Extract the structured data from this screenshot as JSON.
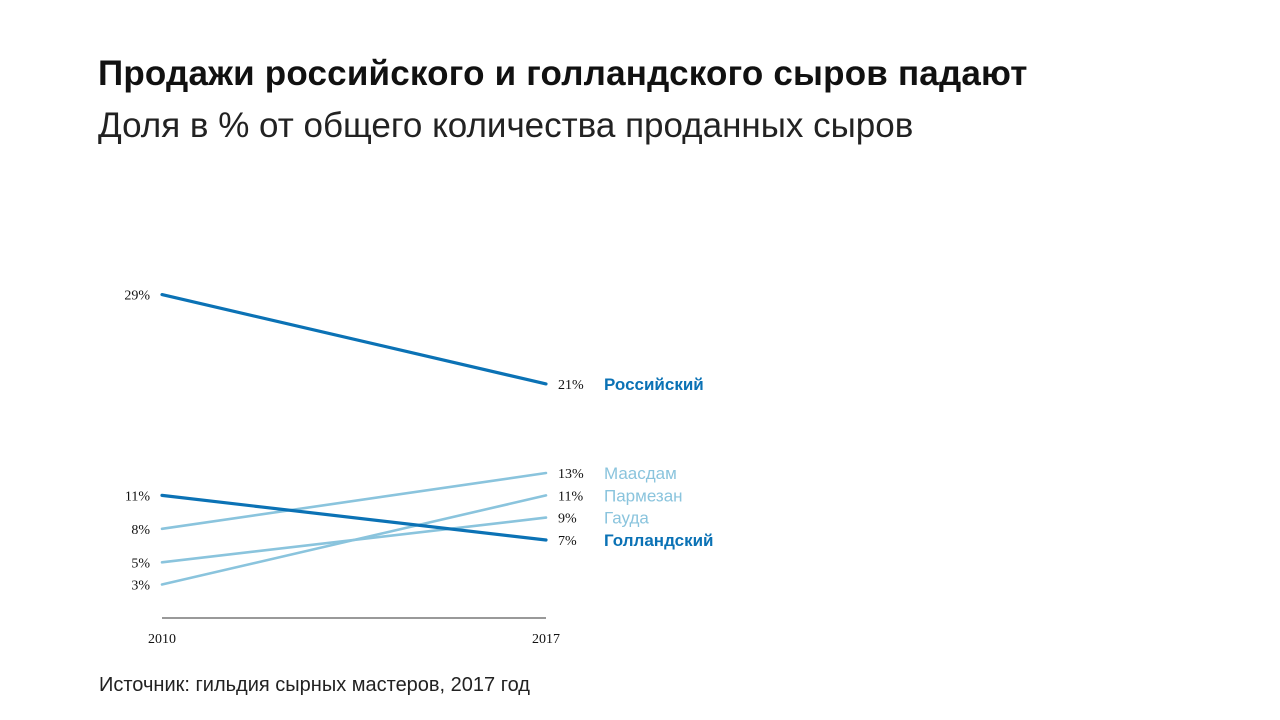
{
  "title": "Продажи российского и голландского сыров падают",
  "subtitle": "Доля в % от общего количества проданных сыров",
  "source": "Источник: гильдия сырных мастеров, 2017 год",
  "colors": {
    "dark": "#0b72b5",
    "light": "#8ac4dd",
    "axis": "#333333"
  },
  "chart_data": {
    "type": "line",
    "title": "Продажи российского и голландского сыров падают",
    "subtitle": "Доля в % от общего количества проданных сыров",
    "x": [
      "2010",
      "2017"
    ],
    "ylim": [
      0,
      35
    ],
    "grid": false,
    "legend": "inline-right",
    "series": [
      {
        "name": "Российский",
        "values": [
          29,
          21
        ],
        "labels": [
          "29%",
          "21%"
        ],
        "emphasis": true,
        "color": "#0b72b5"
      },
      {
        "name": "Маасдам",
        "values": [
          8,
          13
        ],
        "labels": [
          "8%",
          "13%"
        ],
        "emphasis": false,
        "color": "#8ac4dd"
      },
      {
        "name": "Пармезан",
        "values": [
          3,
          11
        ],
        "labels": [
          "3%",
          "11%"
        ],
        "emphasis": false,
        "color": "#8ac4dd"
      },
      {
        "name": "Гауда",
        "values": [
          5,
          9
        ],
        "labels": [
          "5%",
          "9%"
        ],
        "emphasis": false,
        "color": "#8ac4dd"
      },
      {
        "name": "Голландский",
        "values": [
          11,
          7
        ],
        "labels": [
          "11%",
          "7%"
        ],
        "emphasis": true,
        "color": "#0b72b5"
      }
    ]
  }
}
